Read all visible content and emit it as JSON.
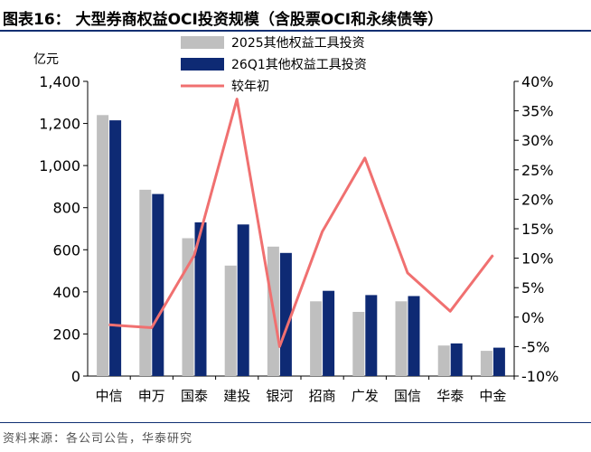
{
  "figure": {
    "title": "图表16：  大型券商权益OCI投资规模（含股票OCI和永续债等）",
    "source": "资料来源：各公司公告，华泰研究",
    "rule_color": "#0f2f72"
  },
  "chart_data": {
    "type": "bar",
    "title": "",
    "unit_label": "亿元",
    "categories": [
      "中信",
      "申万",
      "国泰",
      "建投",
      "银河",
      "招商",
      "广发",
      "国信",
      "华泰",
      "中金"
    ],
    "y_left": {
      "ylim": [
        0,
        1400
      ],
      "ticks": [
        0,
        200,
        400,
        600,
        800,
        1000,
        1200,
        1400
      ],
      "tick_labels": [
        "0",
        "200",
        "400",
        "600",
        "800",
        "1,000",
        "1,200",
        "1,400"
      ]
    },
    "y_right": {
      "ylim": [
        -10,
        40
      ],
      "ticks": [
        -10,
        -5,
        0,
        5,
        10,
        15,
        20,
        25,
        30,
        35,
        40
      ],
      "tick_labels": [
        "-10%",
        "-5%",
        "0%",
        "5%",
        "10%",
        "15%",
        "20%",
        "25%",
        "30%",
        "35%",
        "40%"
      ]
    },
    "series": [
      {
        "name": "2025其他权益工具投资",
        "kind": "bar",
        "axis": "left",
        "color": "#bfbfbf",
        "values": [
          1240,
          885,
          655,
          525,
          615,
          355,
          305,
          355,
          145,
          120
        ]
      },
      {
        "name": "26Q1其他权益工具投资",
        "kind": "bar",
        "axis": "left",
        "color": "#0e2a74",
        "values": [
          1215,
          865,
          730,
          720,
          585,
          405,
          385,
          380,
          155,
          135
        ]
      },
      {
        "name": "较年初",
        "kind": "line",
        "axis": "right",
        "color": "#f07070",
        "values": [
          -1.3,
          -1.8,
          10.5,
          37.0,
          -5.0,
          14.5,
          27.0,
          7.5,
          1.0,
          10.5
        ]
      }
    ],
    "grid": false,
    "legend": "top-center"
  }
}
